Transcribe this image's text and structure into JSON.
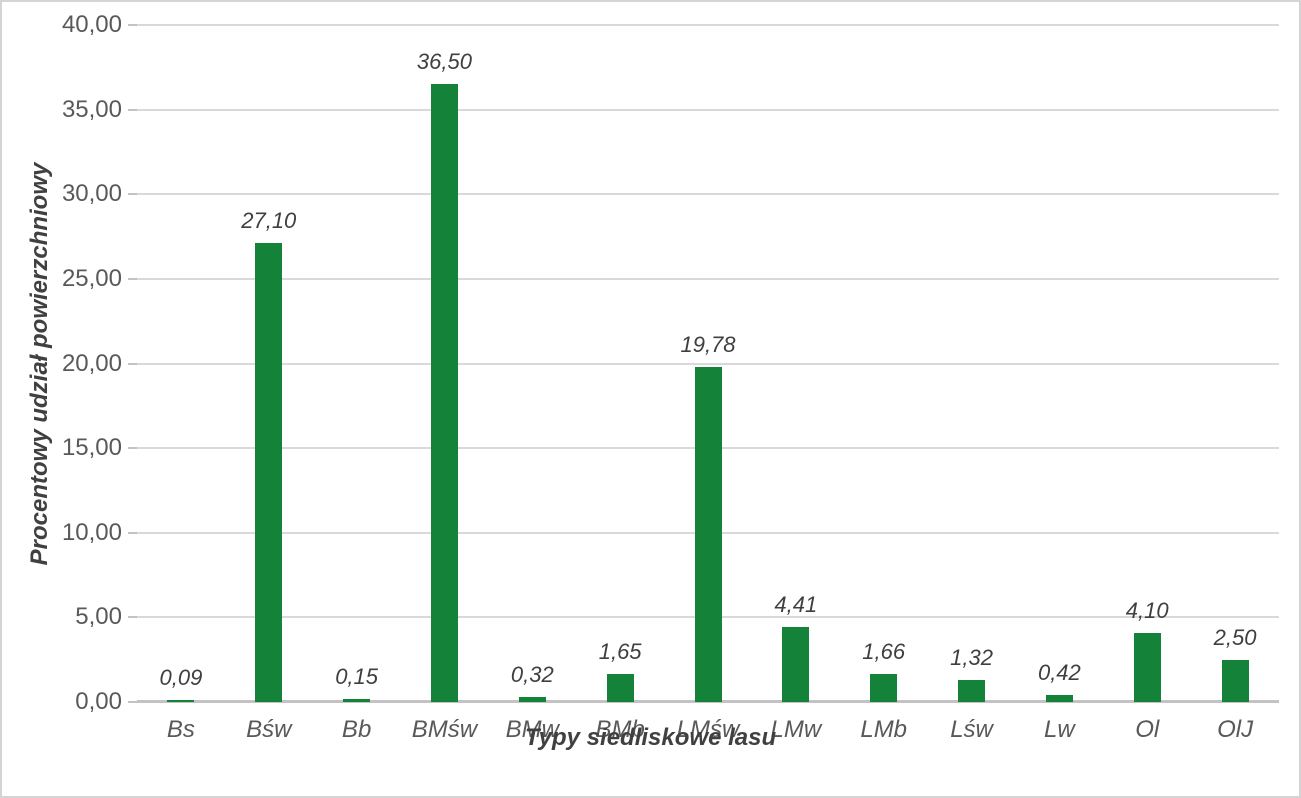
{
  "chart_data": {
    "type": "bar",
    "title": "",
    "xlabel": "Typy siedliskowe lasu",
    "ylabel": "Procentowy udział powierzchniowy",
    "categories": [
      "Bs",
      "Bśw",
      "Bb",
      "BMśw",
      "BMw",
      "BMb",
      "LMśw",
      "LMw",
      "LMb",
      "Lśw",
      "Lw",
      "Ol",
      "OlJ"
    ],
    "values": [
      0.09,
      27.1,
      0.15,
      36.5,
      0.32,
      1.65,
      19.78,
      4.41,
      1.66,
      1.32,
      0.42,
      4.1,
      2.5
    ],
    "value_labels": [
      "0,09",
      "27,10",
      "0,15",
      "36,50",
      "0,32",
      "1,65",
      "19,78",
      "4,41",
      "1,66",
      "1,32",
      "0,42",
      "4,10",
      "2,50"
    ],
    "ylim": [
      0,
      40
    ],
    "ytick_step": 5,
    "ytick_labels": [
      "0,00",
      "5,00",
      "10,00",
      "15,00",
      "20,00",
      "25,00",
      "30,00",
      "35,00",
      "40,00"
    ],
    "grid": true,
    "legend": "none",
    "decimal_separator": ",",
    "colors": {
      "bar": "#148239",
      "gridline": "#d9d9d9",
      "axis_line": "#c3c3c3",
      "tick_label": "#595959",
      "data_label": "#3f3f3f",
      "axis_title": "#404040",
      "frame_border": "#d4d4d4",
      "background": "#ffffff"
    }
  }
}
